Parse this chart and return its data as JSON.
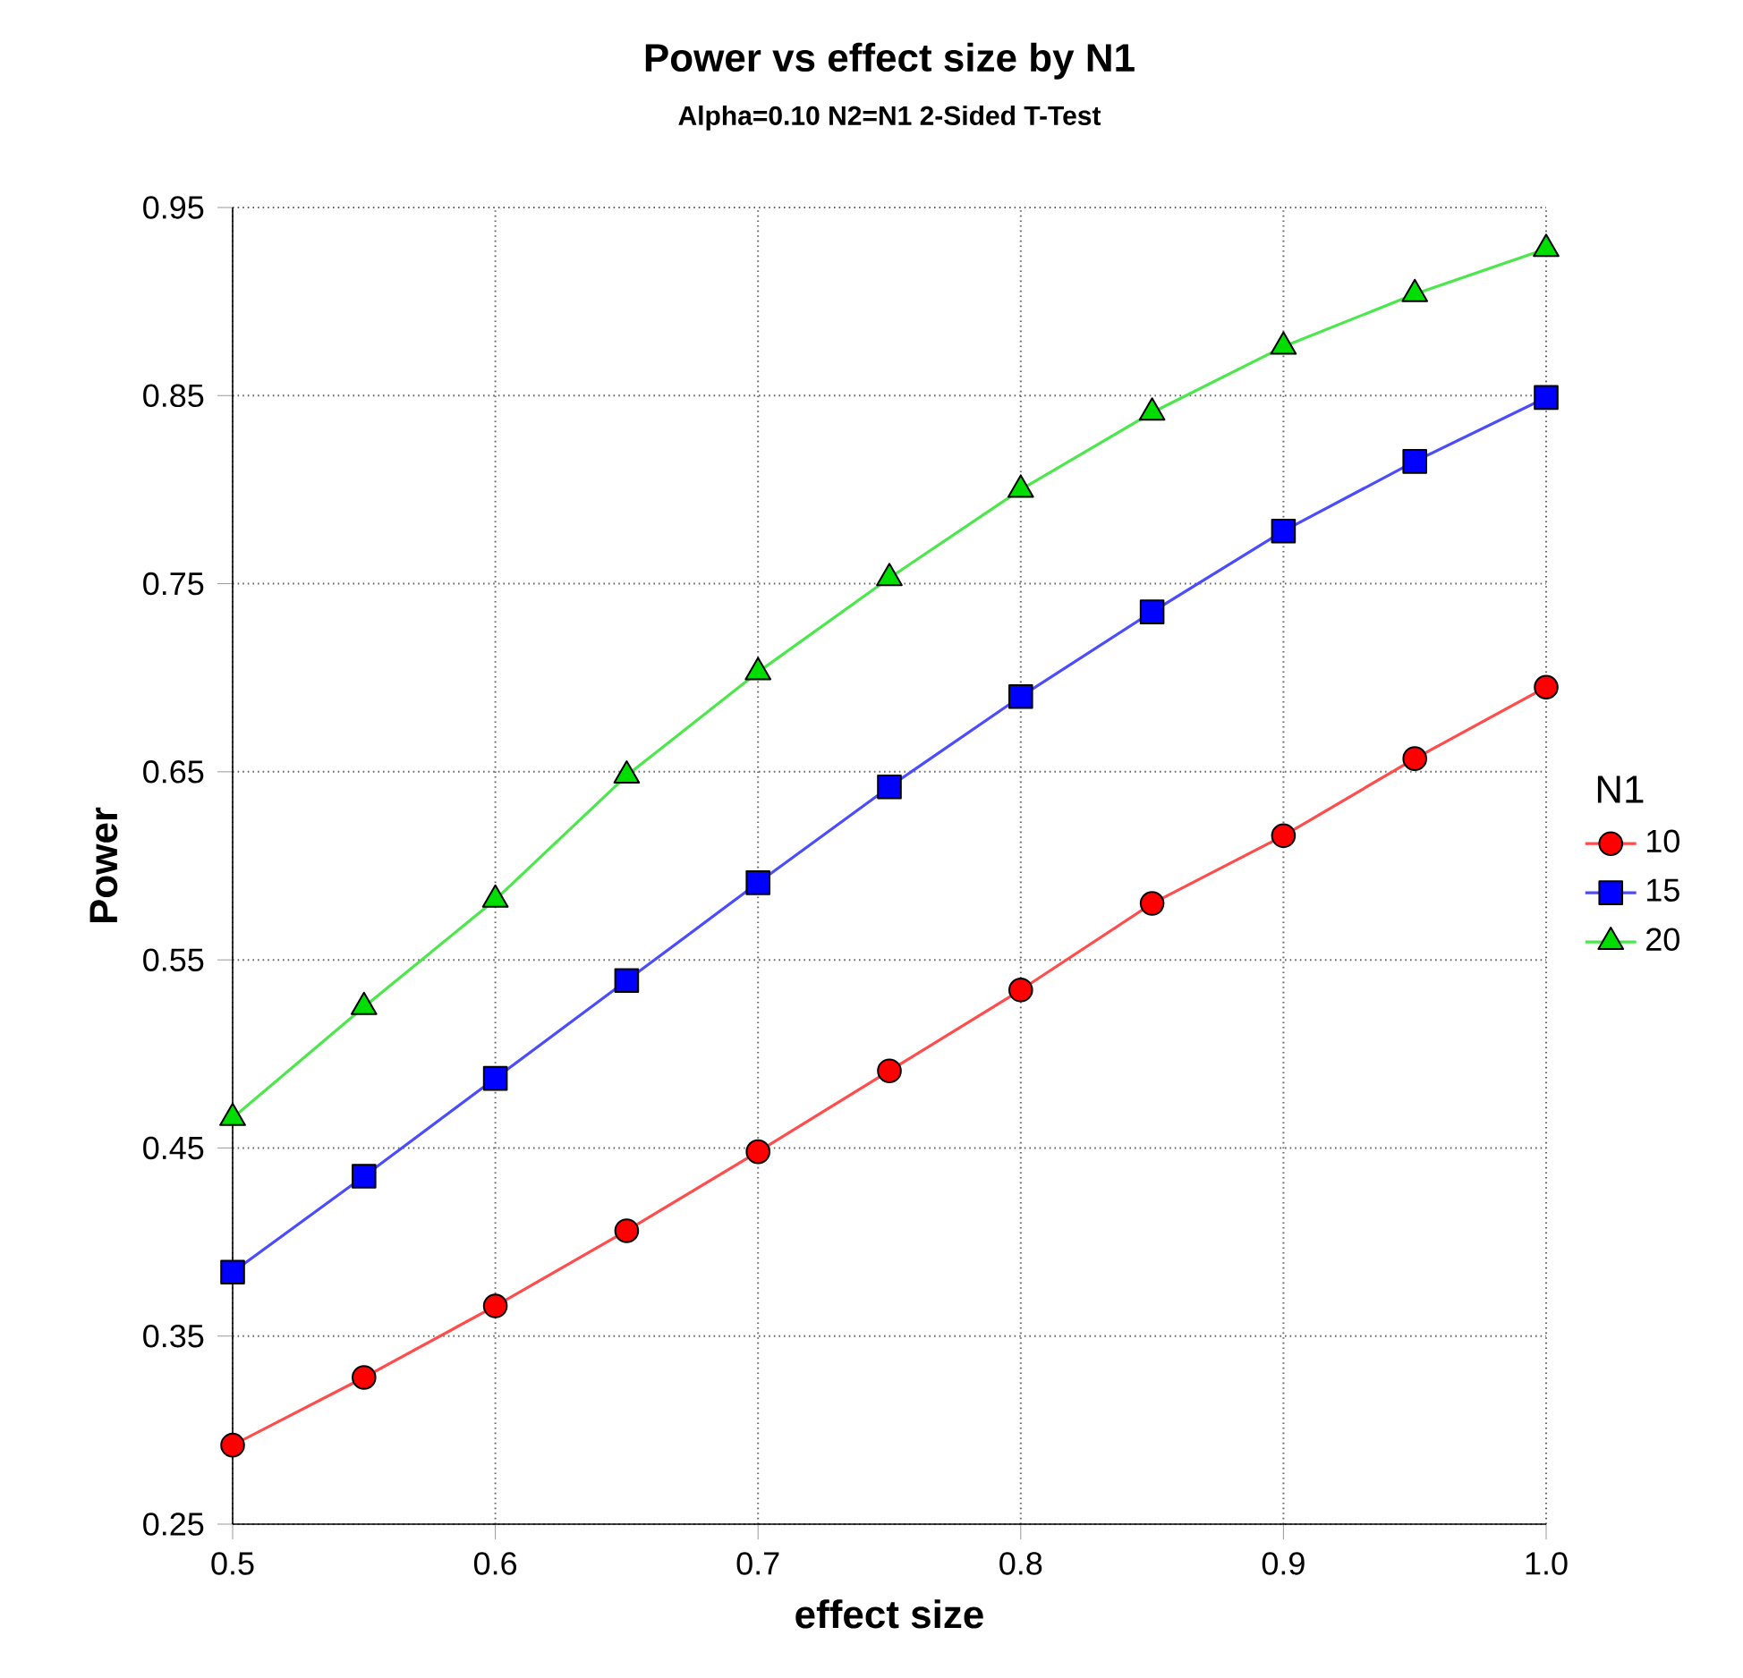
{
  "chart_data": {
    "type": "line",
    "title": "Power vs effect size by N1",
    "subtitle": "Alpha=0.10 N2=N1 2-Sided T-Test",
    "xlabel": "effect size",
    "ylabel": "Power",
    "legend_title": "N1",
    "x": [
      0.5,
      0.55,
      0.6,
      0.65,
      0.7,
      0.75,
      0.8,
      0.85,
      0.9,
      0.95,
      1.0
    ],
    "series": [
      {
        "name": "10",
        "color": "#ff0000",
        "marker": "circle",
        "values": [
          0.292,
          0.328,
          0.366,
          0.406,
          0.448,
          0.491,
          0.534,
          0.58,
          0.616,
          0.657,
          0.695
        ]
      },
      {
        "name": "15",
        "color": "#0000ff",
        "marker": "square",
        "values": [
          0.384,
          0.435,
          0.487,
          0.539,
          0.591,
          0.642,
          0.69,
          0.735,
          0.778,
          0.815,
          0.849
        ]
      },
      {
        "name": "20",
        "color": "#00dd00",
        "marker": "triangle",
        "values": [
          0.466,
          0.525,
          0.582,
          0.648,
          0.703,
          0.753,
          0.8,
          0.841,
          0.876,
          0.904,
          0.928
        ]
      }
    ],
    "xlim": [
      0.5,
      1.0
    ],
    "ylim": [
      0.25,
      0.95
    ],
    "xticks": [
      0.5,
      0.6,
      0.7,
      0.8,
      0.9,
      {
        "value": 1.0,
        "label": "1.0"
      }
    ],
    "yticks": [
      0.25,
      0.35,
      0.45,
      0.55,
      0.65,
      0.75,
      0.85,
      0.95
    ],
    "grid": true,
    "legend": "right",
    "line_style": "solid"
  }
}
